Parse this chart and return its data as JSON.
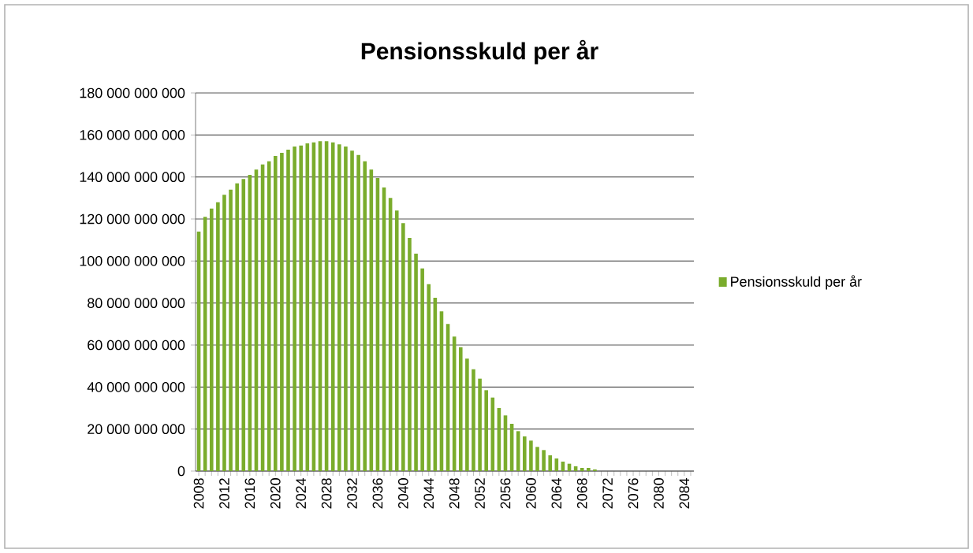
{
  "chart_data": {
    "type": "bar",
    "title": "Pensionsskuld per år",
    "categories": [
      "2008",
      null,
      null,
      null,
      "2012",
      null,
      null,
      null,
      "2016",
      null,
      null,
      null,
      "2020",
      null,
      null,
      null,
      "2024",
      null,
      null,
      null,
      "2028",
      null,
      null,
      null,
      "2032",
      null,
      null,
      null,
      "2036",
      null,
      null,
      null,
      "2040",
      null,
      null,
      null,
      "2044",
      null,
      null,
      null,
      "2048",
      null,
      null,
      null,
      "2052",
      null,
      null,
      null,
      "2056",
      null,
      null,
      null,
      "2060",
      null,
      null,
      null,
      "2064",
      null,
      null,
      null,
      "2068",
      null,
      null,
      null,
      "2072",
      null,
      null,
      null,
      "2076",
      null,
      null,
      null,
      "2080",
      null,
      null,
      null,
      "2084",
      null
    ],
    "series": [
      {
        "name": "Pensionsskuld per år",
        "color": "#7aac2c",
        "values": [
          114000000000,
          121000000000,
          125000000000,
          128000000000,
          131500000000,
          134000000000,
          137000000000,
          139000000000,
          141000000000,
          143500000000,
          146000000000,
          147500000000,
          150000000000,
          151500000000,
          153000000000,
          154500000000,
          155000000000,
          156000000000,
          156500000000,
          157000000000,
          157000000000,
          156500000000,
          155500000000,
          154500000000,
          152500000000,
          150500000000,
          147500000000,
          143500000000,
          139500000000,
          135000000000,
          130000000000,
          124000000000,
          118000000000,
          111000000000,
          103500000000,
          96500000000,
          89000000000,
          82500000000,
          76000000000,
          70000000000,
          64000000000,
          59000000000,
          53500000000,
          48500000000,
          44000000000,
          38500000000,
          35000000000,
          30000000000,
          26500000000,
          22500000000,
          19000000000,
          16500000000,
          14500000000,
          11500000000,
          10000000000,
          7500000000,
          6000000000,
          4500000000,
          3500000000,
          2300000000,
          1500000000,
          1500000000,
          800000000,
          0,
          0,
          0,
          0,
          0,
          0,
          0,
          0,
          0,
          0,
          0,
          0,
          0,
          0,
          0
        ]
      }
    ],
    "ylim": [
      0,
      180000000000
    ],
    "yticks": [
      {
        "value": 0,
        "label": "0"
      },
      {
        "value": 20000000000,
        "label": "20 000 000 000"
      },
      {
        "value": 40000000000,
        "label": "40 000 000 000"
      },
      {
        "value": 60000000000,
        "label": "60 000 000 000"
      },
      {
        "value": 80000000000,
        "label": "80 000 000 000"
      },
      {
        "value": 100000000000,
        "label": "100 000 000 000"
      },
      {
        "value": 120000000000,
        "label": "120 000 000 000"
      },
      {
        "value": 140000000000,
        "label": "140 000 000 000"
      },
      {
        "value": 160000000000,
        "label": "160 000 000 000"
      },
      {
        "value": 180000000000,
        "label": "180 000 000 000"
      }
    ],
    "grid": "y",
    "legend": "right"
  }
}
